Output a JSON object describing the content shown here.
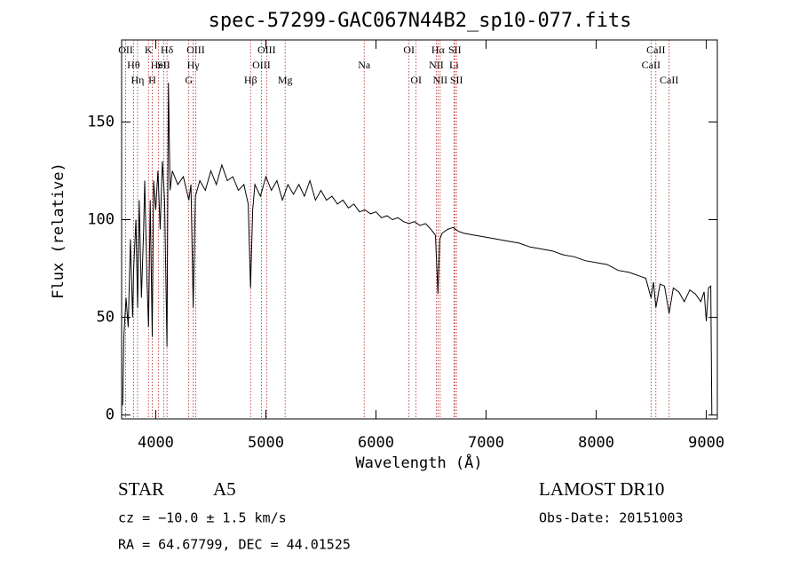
{
  "chart_data": {
    "type": "line",
    "title": "spec-57299-GAC067N44B2_sp10-077.fits",
    "x_label": "Wavelength (Å)",
    "y_label": "Flux (relative)",
    "xlim": [
      3690,
      9100
    ],
    "ylim": [
      -2,
      192
    ],
    "xticks": [
      4000,
      5000,
      6000,
      7000,
      8000,
      9000
    ],
    "yticks": [
      0,
      50,
      100,
      150
    ],
    "color": "#000000",
    "line_color": "#b22222",
    "x": [
      3700,
      3710,
      3730,
      3750,
      3770,
      3790,
      3800,
      3820,
      3835,
      3850,
      3870,
      3890,
      3900,
      3920,
      3934,
      3950,
      3968,
      3980,
      4000,
      4020,
      4040,
      4060,
      4080,
      4102,
      4115,
      4130,
      4150,
      4200,
      4250,
      4300,
      4320,
      4340,
      4360,
      4400,
      4450,
      4500,
      4550,
      4600,
      4650,
      4700,
      4750,
      4800,
      4840,
      4861,
      4880,
      4900,
      4950,
      5000,
      5050,
      5100,
      5150,
      5200,
      5250,
      5300,
      5350,
      5400,
      5450,
      5500,
      5550,
      5600,
      5650,
      5700,
      5750,
      5800,
      5850,
      5900,
      5950,
      6000,
      6050,
      6100,
      6150,
      6200,
      6250,
      6300,
      6350,
      6400,
      6450,
      6500,
      6540,
      6563,
      6580,
      6600,
      6650,
      6700,
      6750,
      6800,
      6900,
      7000,
      7100,
      7200,
      7300,
      7400,
      7500,
      7600,
      7700,
      7800,
      7900,
      8000,
      8100,
      8200,
      8300,
      8400,
      8450,
      8498,
      8520,
      8542,
      8580,
      8620,
      8662,
      8700,
      8750,
      8800,
      8850,
      8900,
      8950,
      8980,
      9000,
      9020,
      9040,
      9050
    ],
    "values": [
      5,
      40,
      60,
      45,
      90,
      50,
      75,
      100,
      55,
      110,
      60,
      95,
      120,
      70,
      45,
      110,
      40,
      120,
      105,
      125,
      95,
      130,
      110,
      35,
      170,
      115,
      125,
      118,
      122,
      110,
      118,
      55,
      112,
      120,
      115,
      125,
      118,
      128,
      120,
      122,
      115,
      118,
      108,
      65,
      105,
      118,
      112,
      122,
      115,
      120,
      110,
      118,
      113,
      118,
      112,
      120,
      110,
      115,
      110,
      112,
      108,
      110,
      106,
      108,
      104,
      105,
      103,
      104,
      101,
      102,
      100,
      101,
      99,
      98,
      99,
      97,
      98,
      95,
      92,
      62,
      90,
      93,
      95,
      96,
      94,
      93,
      92,
      91,
      90,
      89,
      88,
      86,
      85,
      84,
      82,
      81,
      79,
      78,
      77,
      74,
      73,
      71,
      70,
      60,
      68,
      55,
      67,
      66,
      52,
      65,
      63,
      58,
      64,
      62,
      58,
      63,
      48,
      65,
      66,
      0
    ],
    "lines": [
      {
        "label": "OII",
        "wavelength": 3727
      },
      {
        "label": "Hθ",
        "wavelength": 3798
      },
      {
        "label": "Hη",
        "wavelength": 3835
      },
      {
        "label": "K",
        "wavelength": 3934
      },
      {
        "label": "HeI",
        "wavelength": 4026
      },
      {
        "label": "H",
        "wavelength": 3968
      },
      {
        "label": "Hδ",
        "wavelength": 4102
      },
      {
        "label": "SII",
        "wavelength": 4072
      },
      {
        "label": "G",
        "wavelength": 4300
      },
      {
        "label": "OIII",
        "wavelength": 4363
      },
      {
        "label": "Hγ",
        "wavelength": 4340
      },
      {
        "label": "Hβ",
        "wavelength": 4861
      },
      {
        "label": "OIII",
        "wavelength": 5007
      },
      {
        "label": "OIII",
        "wavelength": 4959
      },
      {
        "label": "Mg",
        "wavelength": 5175
      },
      {
        "label": "OI",
        "wavelength": 6300
      },
      {
        "label": "Na",
        "wavelength": 5893
      },
      {
        "label": "OI",
        "wavelength": 6364
      },
      {
        "label": "Hα",
        "wavelength": 6563
      },
      {
        "label": "NII",
        "wavelength": 6548
      },
      {
        "label": "NII",
        "wavelength": 6583
      },
      {
        "label": "SII",
        "wavelength": 6716
      },
      {
        "label": "Li",
        "wavelength": 6708
      },
      {
        "label": "SII",
        "wavelength": 6731
      },
      {
        "label": "CaII",
        "wavelength": 8542
      },
      {
        "label": "CaII",
        "wavelength": 8498
      },
      {
        "label": "CaII",
        "wavelength": 8662
      }
    ]
  },
  "footer": {
    "class": "STAR",
    "subclass": "A5",
    "survey": "LAMOST DR10",
    "redshift": "cz = −10.0 ± 1.5 km/s",
    "obs_date": "Obs-Date: 20151003",
    "coords": "RA =  64.67799, DEC =  44.01525"
  }
}
